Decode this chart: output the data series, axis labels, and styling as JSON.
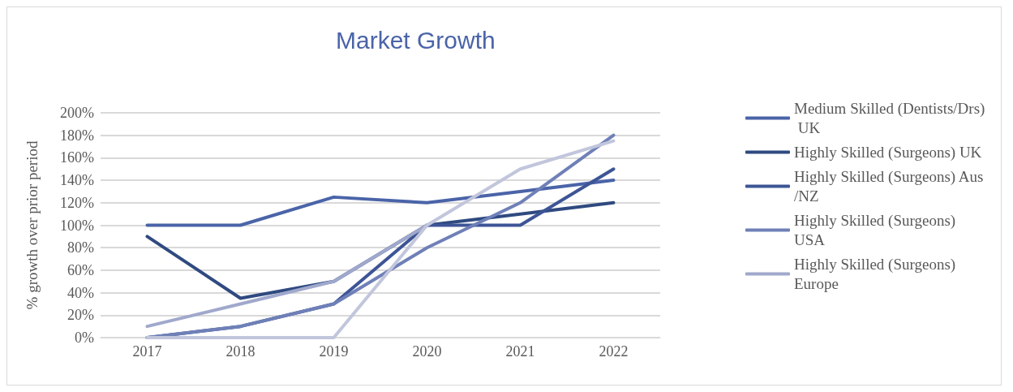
{
  "chart_data": {
    "type": "line",
    "title": "Market Growth",
    "ylabel": "% growth over prior period",
    "categories": [
      "2017",
      "2018",
      "2019",
      "2020",
      "2021",
      "2022"
    ],
    "series": [
      {
        "name": "Medium Skilled (Dentists/Drs) UK",
        "color": "#4a64a8",
        "values": [
          100,
          100,
          125,
          120,
          130,
          140
        ]
      },
      {
        "name": "Highly Skilled (Surgeons) UK",
        "color": "#2f4a80",
        "values": [
          90,
          35,
          50,
          100,
          110,
          120
        ]
      },
      {
        "name": "Highly Skilled (Surgeons) Aus/NZ",
        "color": "#3d5596",
        "values": [
          0,
          10,
          30,
          100,
          100,
          150
        ]
      },
      {
        "name": "Highly Skilled (Surgeons) USA",
        "color": "#6f80b8",
        "values": [
          0,
          10,
          30,
          80,
          120,
          180
        ]
      },
      {
        "name": "Highly Skilled (Surgeons) Europe",
        "color": "#a0a8cc",
        "values": [
          10,
          30,
          50,
          100,
          null,
          null
        ]
      },
      {
        "color": "#c2c6dc",
        "values": [
          0,
          0,
          0,
          100,
          150,
          175
        ]
      }
    ],
    "ylim": [
      0,
      200
    ],
    "yticks": [
      {
        "value": 0,
        "label": "0%"
      },
      {
        "value": 20,
        "label": "20%"
      },
      {
        "value": 40,
        "label": "40%"
      },
      {
        "value": 60,
        "label": "60%"
      },
      {
        "value": 80,
        "label": "80%"
      },
      {
        "value": 100,
        "label": "100%"
      },
      {
        "value": 120,
        "label": "120%"
      },
      {
        "value": 140,
        "label": "140%"
      },
      {
        "value": 160,
        "label": "160%"
      },
      {
        "value": 180,
        "label": "180%"
      },
      {
        "value": 200,
        "label": "200%"
      }
    ],
    "grid": "y",
    "legend": "right",
    "marker": "none",
    "line_style": "solid"
  }
}
